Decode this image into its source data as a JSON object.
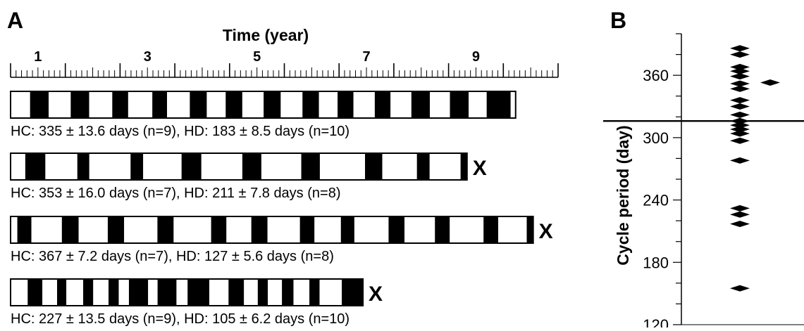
{
  "panel_a": {
    "label": "A",
    "axis_title": "Time (year)",
    "tick_labels": [
      "1",
      "3",
      "5",
      "7",
      "9"
    ],
    "records": [
      {
        "caption": "HC: 335 ± 13.6 days (n=9), HD: 183 ± 8.5 days (n=10)",
        "end_marker": "",
        "segments_days": [
          130,
          124,
          147,
          123,
          154,
          106,
          161,
          98,
          152,
          113,
          126,
          111,
          142,
          114,
          145,
          110,
          124,
          106,
          142,
          105,
          139,
          123,
          134,
          125,
          120,
          160,
          33
        ]
      },
      {
        "caption": "HC: 353 ± 16.0 days (n=7), HD: 211 ± 7.8 days (n=8)",
        "end_marker": "X",
        "segments_days": [
          98,
          134,
          213,
          80,
          275,
          84,
          256,
          132,
          273,
          127,
          266,
          124,
          301,
          115,
          231,
          85,
          206,
          43
        ]
      },
      {
        "caption": "HC: 367 ± 7.2 days (n=7), HD: 127 ± 5.6 days (n=8)",
        "end_marker": "X",
        "segments_days": [
          45,
          94,
          203,
          112,
          194,
          109,
          222,
          108,
          250,
          102,
          166,
          108,
          216,
          97,
          176,
          90,
          228,
          106,
          203,
          99,
          225,
          98,
          190,
          43
        ]
      },
      {
        "caption": "HC: 227 ± 13.5 days (n=9), HD: 105 ± 6.2 days (n=10)",
        "end_marker": "X",
        "segments_days": [
          114,
          98,
          98,
          62,
          112,
          67,
          102,
          68,
          68,
          128,
          63,
          126,
          74,
          145,
          128,
          103,
          92,
          67,
          94,
          77,
          106,
          68,
          148,
          141
        ]
      }
    ]
  },
  "panel_b": {
    "label": "B",
    "ylabel": "Cycle period (day)",
    "ytick_labels": [
      "120",
      "180",
      "240",
      "300",
      "360"
    ]
  },
  "chart_data": [
    {
      "type": "bar",
      "title": "Time (year)",
      "description_of_encoding": "",
      "x_range_years": [
        0.5,
        10.5
      ],
      "x_ticks": [
        1,
        3,
        5,
        7,
        9
      ]
    },
    {
      "type": "scatter",
      "ylabel": "Cycle period (day)",
      "ylim": [
        120,
        400
      ],
      "yticks": [
        120,
        180,
        240,
        300,
        360
      ],
      "reference_line_y": 316,
      "points": [
        {
          "x": 1,
          "y": 386
        },
        {
          "x": 1,
          "y": 380
        },
        {
          "x": 1,
          "y": 368
        },
        {
          "x": 1,
          "y": 364
        },
        {
          "x": 1,
          "y": 359
        },
        {
          "x": 1,
          "y": 352
        },
        {
          "x": 1,
          "y": 347
        },
        {
          "x": 1,
          "y": 336
        },
        {
          "x": 1,
          "y": 330
        },
        {
          "x": 1,
          "y": 322
        },
        {
          "x": 1,
          "y": 316
        },
        {
          "x": 1,
          "y": 312
        },
        {
          "x": 1,
          "y": 308
        },
        {
          "x": 1,
          "y": 304
        },
        {
          "x": 1,
          "y": 297
        },
        {
          "x": 1,
          "y": 278
        },
        {
          "x": 1,
          "y": 232
        },
        {
          "x": 1,
          "y": 226
        },
        {
          "x": 1,
          "y": 217
        },
        {
          "x": 1,
          "y": 155
        },
        {
          "x": 2,
          "y": 353
        }
      ]
    }
  ]
}
